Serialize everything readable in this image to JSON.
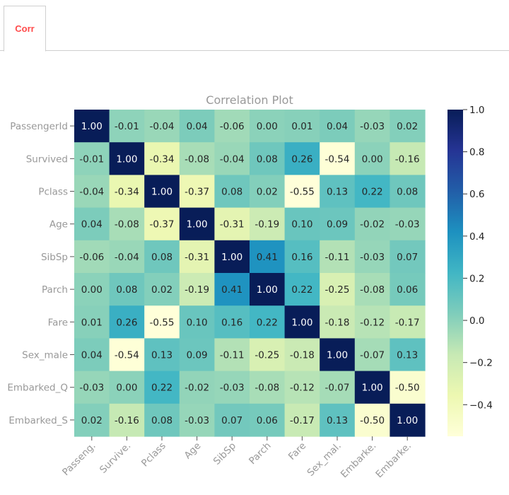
{
  "tabs": [
    {
      "label": "Corr"
    }
  ],
  "chart_data": {
    "type": "heatmap",
    "title": "Correlation Plot",
    "row_labels": [
      "PassengerId",
      "Survived",
      "Pclass",
      "Age",
      "SibSp",
      "Parch",
      "Fare",
      "Sex_male",
      "Embarked_Q",
      "Embarked_S"
    ],
    "col_labels": [
      "Passeng.",
      "Survive.",
      "Pclass",
      "Age",
      "SibSp",
      "Parch",
      "Fare",
      "Sex_mal.",
      "Embarke.",
      "Embarke."
    ],
    "values": [
      [
        1.0,
        -0.01,
        -0.04,
        0.04,
        -0.06,
        -0.0,
        0.01,
        0.04,
        -0.03,
        0.02
      ],
      [
        -0.01,
        1.0,
        -0.34,
        -0.08,
        -0.04,
        0.08,
        0.26,
        -0.54,
        0.0,
        -0.16
      ],
      [
        -0.04,
        -0.34,
        1.0,
        -0.37,
        0.08,
        0.02,
        -0.55,
        0.13,
        0.22,
        0.08
      ],
      [
        0.04,
        -0.08,
        -0.37,
        1.0,
        -0.31,
        -0.19,
        0.1,
        0.09,
        -0.02,
        -0.03
      ],
      [
        -0.06,
        -0.04,
        0.08,
        -0.31,
        1.0,
        0.41,
        0.16,
        -0.11,
        -0.03,
        0.07
      ],
      [
        -0.0,
        0.08,
        0.02,
        -0.19,
        0.41,
        1.0,
        0.22,
        -0.25,
        -0.08,
        0.06
      ],
      [
        0.01,
        0.26,
        -0.55,
        0.1,
        0.16,
        0.22,
        1.0,
        -0.18,
        -0.12,
        -0.17
      ],
      [
        0.04,
        -0.54,
        0.13,
        0.09,
        -0.11,
        -0.25,
        -0.18,
        1.0,
        -0.07,
        0.13
      ],
      [
        -0.03,
        0.0,
        0.22,
        -0.02,
        -0.03,
        -0.08,
        -0.12,
        -0.07,
        1.0,
        -0.5
      ],
      [
        0.02,
        -0.16,
        0.08,
        -0.03,
        0.07,
        0.06,
        -0.17,
        0.13,
        -0.5,
        1.0
      ]
    ],
    "value_range": [
      -0.55,
      1.0
    ],
    "colormap": "YlGnBu",
    "colorbar_ticks": [
      "1.0",
      "0.8",
      "0.6",
      "0.4",
      "0.2",
      "0.0",
      "−0.2",
      "−0.4"
    ],
    "colorbar_tick_values": [
      1.0,
      0.8,
      0.6,
      0.4,
      0.2,
      0.0,
      -0.2,
      -0.4
    ],
    "xlabel": "",
    "ylabel": "",
    "colors": {
      "title": "#999999",
      "tick_label": "#999999",
      "dark_text": "#262626",
      "light_text": "#ffffff"
    }
  }
}
